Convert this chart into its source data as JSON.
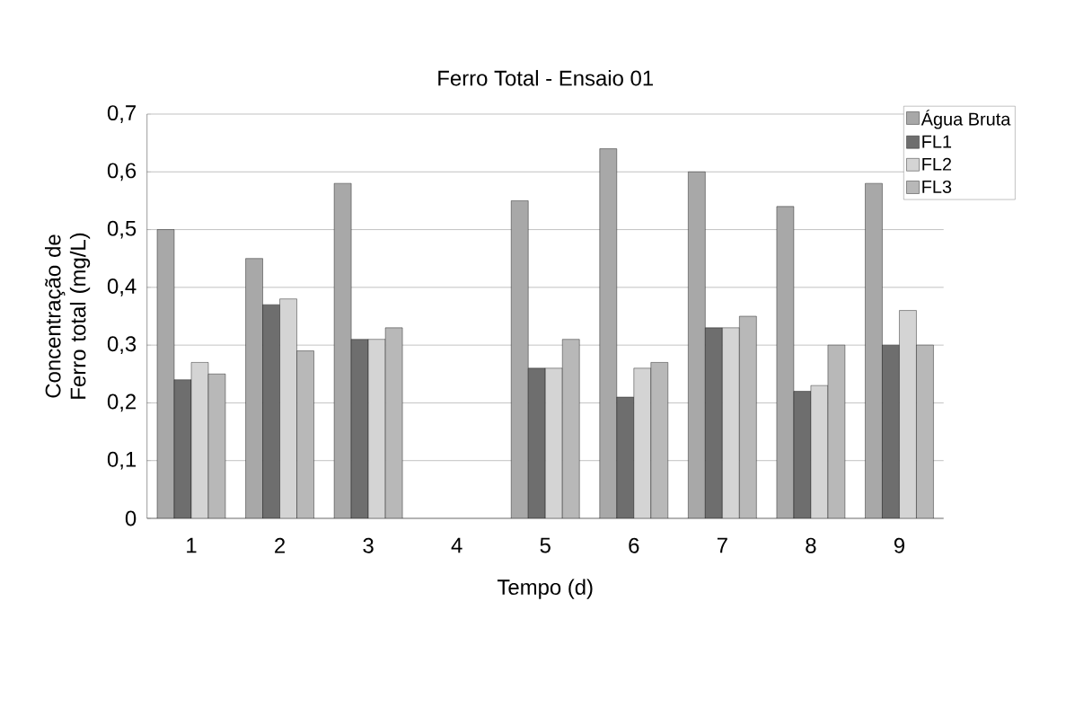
{
  "chart_data": {
    "type": "bar",
    "title": "Ferro Total - Ensaio 01",
    "xlabel": "Tempo (d)",
    "ylabel": "Concentração de Ferro total (mg/L)",
    "categories": [
      "1",
      "2",
      "3",
      "4",
      "5",
      "6",
      "7",
      "8",
      "9"
    ],
    "series": [
      {
        "name": "Água Bruta",
        "color": "#a8a8a8",
        "values": [
          0.5,
          0.45,
          0.58,
          null,
          0.55,
          0.64,
          0.6,
          0.54,
          0.58
        ]
      },
      {
        "name": "FL1",
        "color": "#6e6e6e",
        "values": [
          0.24,
          0.37,
          0.31,
          null,
          0.26,
          0.21,
          0.33,
          0.22,
          0.3
        ]
      },
      {
        "name": "FL2",
        "color": "#d4d4d4",
        "values": [
          0.27,
          0.38,
          0.31,
          null,
          0.26,
          0.26,
          0.33,
          0.23,
          0.36
        ]
      },
      {
        "name": "FL3",
        "color": "#b8b8b8",
        "values": [
          0.25,
          0.29,
          0.33,
          null,
          0.31,
          0.27,
          0.35,
          0.3,
          0.3
        ]
      }
    ],
    "ylim": [
      0,
      0.7
    ],
    "yticks": [
      0,
      {
        "value": 0.1,
        "label": "0,1"
      },
      {
        "value": 0.2,
        "label": "0,2"
      },
      {
        "value": 0.3,
        "label": "0,3"
      },
      {
        "value": 0.4,
        "label": "0,4"
      },
      {
        "value": 0.5,
        "label": "0,5"
      },
      {
        "value": 0.6,
        "label": "0,6"
      },
      {
        "value": 0.7,
        "label": "0,7"
      }
    ],
    "grid": "y",
    "legend": "top right"
  }
}
